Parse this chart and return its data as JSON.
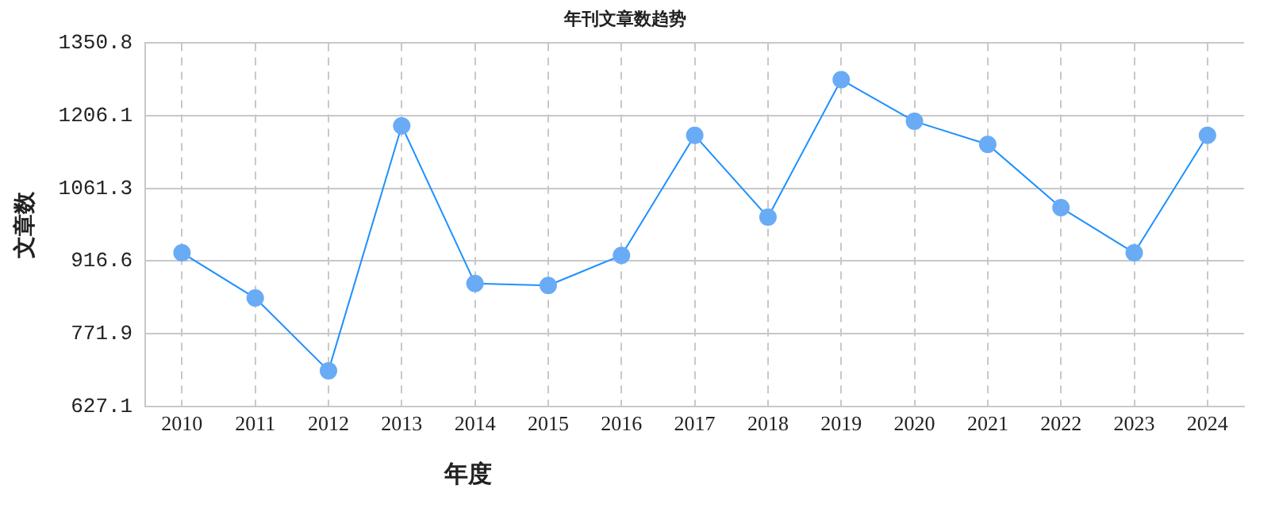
{
  "chart_data": {
    "type": "line",
    "title": "年刊文章数趋势",
    "xlabel": "年度",
    "ylabel": "文章数",
    "categories": [
      "2010",
      "2011",
      "2012",
      "2013",
      "2014",
      "2015",
      "2016",
      "2017",
      "2018",
      "2019",
      "2020",
      "2021",
      "2022",
      "2023",
      "2024"
    ],
    "series": [
      {
        "color": "#1e90ff",
        "values": [
          933,
          843,
          698,
          1186,
          872,
          868,
          928,
          1167,
          1004,
          1278,
          1195,
          1149,
          1023,
          933,
          1167
        ]
      }
    ],
    "ylim": [
      627.1,
      1350.8
    ],
    "yticks": [
      627.1,
      771.9,
      916.6,
      1061.3,
      1206.1,
      1350.8
    ],
    "grid": true,
    "marker": "circle",
    "line_style": "solid",
    "legend": false
  }
}
